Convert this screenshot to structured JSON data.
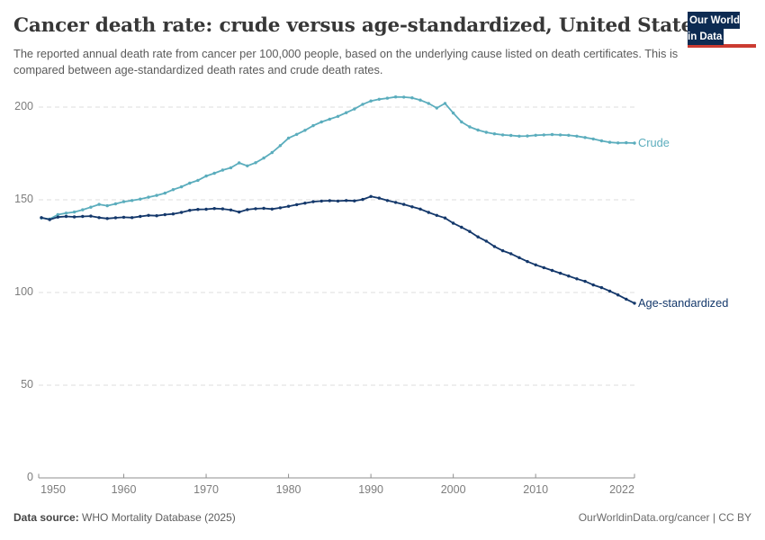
{
  "header": {
    "title": "Cancer death rate: crude versus age-standardized, United States",
    "subtitle": "The reported annual death rate from cancer per 100,000 people, based on the underlying cause listed on death certificates. This is compared between age-standardized death rates and crude death rates.",
    "logo": {
      "line1": "Our World",
      "line2": "in Data",
      "bg_color": "#0d2b52",
      "accent_color": "#cb3b31"
    }
  },
  "chart_data": {
    "type": "line",
    "title": "Cancer death rate: crude versus age-standardized, United States",
    "xlabel": "",
    "ylabel": "",
    "ylim": [
      0,
      210
    ],
    "xlim": [
      1950,
      2022
    ],
    "grid": "horizontal-dashed",
    "legend_position": "end-of-line-labels",
    "marker": "point",
    "x": [
      1950,
      1951,
      1952,
      1953,
      1954,
      1955,
      1956,
      1957,
      1958,
      1959,
      1960,
      1961,
      1962,
      1963,
      1964,
      1965,
      1966,
      1967,
      1968,
      1969,
      1970,
      1971,
      1972,
      1973,
      1974,
      1975,
      1976,
      1977,
      1978,
      1979,
      1980,
      1981,
      1982,
      1983,
      1984,
      1985,
      1986,
      1987,
      1988,
      1989,
      1990,
      1991,
      1992,
      1993,
      1994,
      1995,
      1996,
      1997,
      1998,
      1999,
      2000,
      2001,
      2002,
      2003,
      2004,
      2005,
      2006,
      2007,
      2008,
      2009,
      2010,
      2011,
      2012,
      2013,
      2014,
      2015,
      2016,
      2017,
      2018,
      2019,
      2020,
      2021,
      2022
    ],
    "series": [
      {
        "name": "Crude",
        "color": "#5badbd",
        "values": [
          140.2,
          139.6,
          142.0,
          142.8,
          143.4,
          144.6,
          146.0,
          147.5,
          146.8,
          147.8,
          149.0,
          149.6,
          150.4,
          151.4,
          152.4,
          153.6,
          155.5,
          157.0,
          159.0,
          160.5,
          162.8,
          164.3,
          166.0,
          167.3,
          169.9,
          168.3,
          170.0,
          172.5,
          175.5,
          179.2,
          183.3,
          185.3,
          187.5,
          190.0,
          192.0,
          193.5,
          195.0,
          197.0,
          199.0,
          201.5,
          203.3,
          204.2,
          204.8,
          205.5,
          205.4,
          205.0,
          203.8,
          202.0,
          199.5,
          202.0,
          196.8,
          192.0,
          189.3,
          187.6,
          186.4,
          185.6,
          185.0,
          184.7,
          184.3,
          184.4,
          184.8,
          185.0,
          185.2,
          185.0,
          184.8,
          184.3,
          183.6,
          182.8,
          181.8,
          181.0,
          180.7,
          180.8,
          180.6
        ]
      },
      {
        "name": "Age-standardized",
        "color": "#14386b",
        "values": [
          140.4,
          139.3,
          140.7,
          141.0,
          140.8,
          141.0,
          141.2,
          140.4,
          139.9,
          140.3,
          140.6,
          140.4,
          141.0,
          141.6,
          141.4,
          142.0,
          142.4,
          143.2,
          144.3,
          144.8,
          144.9,
          145.3,
          145.1,
          144.5,
          143.4,
          144.7,
          145.2,
          145.4,
          145.0,
          145.7,
          146.5,
          147.4,
          148.2,
          149.0,
          149.3,
          149.5,
          149.3,
          149.6,
          149.4,
          150.2,
          151.8,
          150.9,
          149.6,
          148.6,
          147.5,
          146.2,
          145.0,
          143.2,
          141.6,
          140.2,
          137.4,
          135.2,
          132.9,
          130.0,
          127.7,
          124.8,
          122.5,
          120.9,
          118.8,
          116.7,
          114.9,
          113.4,
          111.9,
          110.4,
          108.9,
          107.4,
          106.0,
          104.1,
          102.6,
          100.8,
          98.7,
          96.4,
          94.2
        ]
      }
    ],
    "yticks": [
      {
        "value": 0,
        "label": "0"
      },
      {
        "value": 50,
        "label": "50"
      },
      {
        "value": 100,
        "label": "100"
      },
      {
        "value": 150,
        "label": "150"
      },
      {
        "value": 200,
        "label": "200"
      }
    ],
    "xticks": [
      {
        "value": 1950,
        "label": "1950"
      },
      {
        "value": 1960,
        "label": "1960"
      },
      {
        "value": 1970,
        "label": "1970"
      },
      {
        "value": 1980,
        "label": "1980"
      },
      {
        "value": 1990,
        "label": "1990"
      },
      {
        "value": 2000,
        "label": "2000"
      },
      {
        "value": 2010,
        "label": "2010"
      },
      {
        "value": 2022,
        "label": "2022"
      }
    ]
  },
  "footer": {
    "source_label": "Data source:",
    "source_value": " WHO Mortality Database (2025)",
    "attribution": "OurWorldinData.org/cancer | CC BY"
  }
}
